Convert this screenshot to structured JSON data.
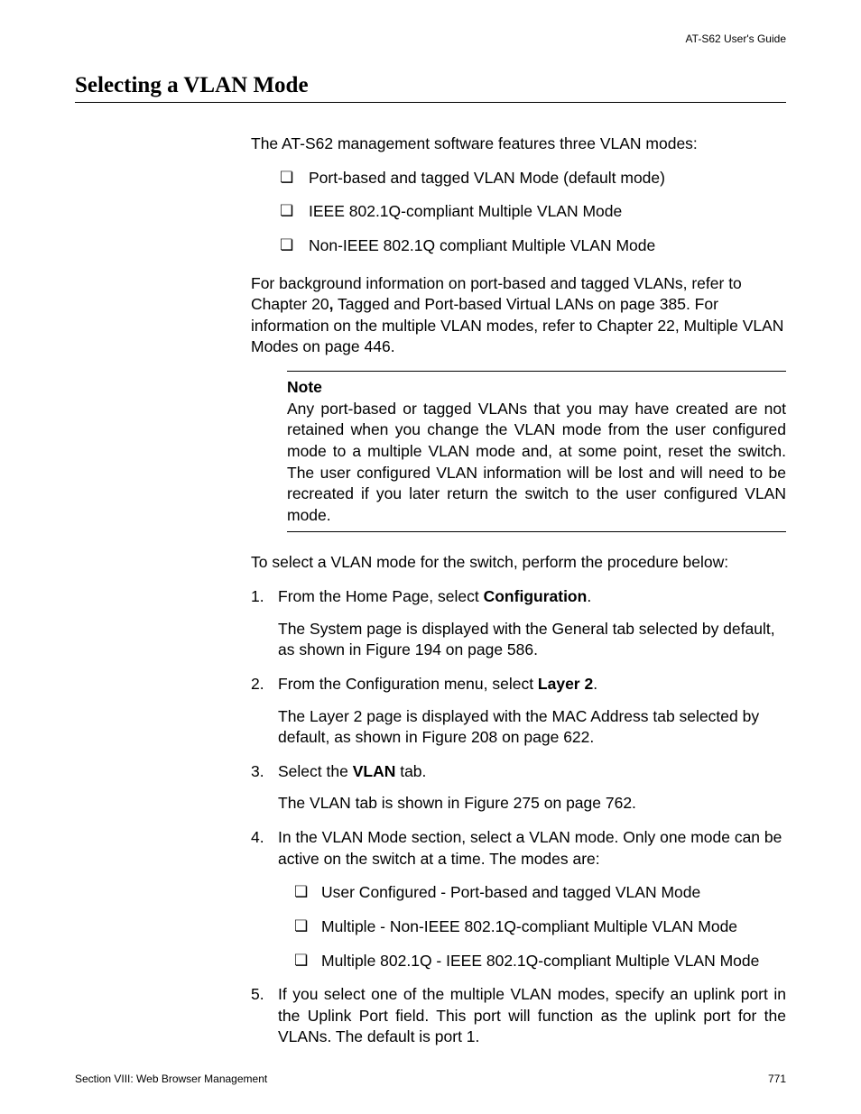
{
  "header": {
    "doc_title": "AT-S62 User's Guide"
  },
  "title": "Selecting a VLAN Mode",
  "intro": "The AT-S62 management software features three VLAN modes:",
  "modes_list": [
    "Port-based and tagged VLAN Mode (default mode)",
    "IEEE 802.1Q-compliant Multiple VLAN Mode",
    "Non-IEEE 802.1Q compliant Multiple VLAN Mode"
  ],
  "background_p1": "For background information on port-based and tagged VLANs, refer to Chapter 20",
  "background_comma_bold": ",",
  "background_p2": " Tagged and Port-based Virtual LANs on page 385. For information on the multiple VLAN modes, refer to Chapter 22, Multiple VLAN Modes on page 446.",
  "note": {
    "heading": "Note",
    "text": "Any port-based or tagged VLANs that you may have created are not retained when you change the VLAN mode from the user configured mode to a multiple VLAN mode and, at some point, reset the switch. The user configured VLAN information will be lost and will need to be recreated if you later return the switch to the user configured VLAN mode."
  },
  "procedure_intro": "To select a VLAN mode for the switch, perform the procedure below:",
  "steps": {
    "s1_pre": "From the Home Page, select ",
    "s1_bold": "Configuration",
    "s1_post": ".",
    "s1_sub": "The System page is displayed with the General tab selected by default, as shown in Figure 194 on page 586.",
    "s2_pre": "From the Configuration menu, select ",
    "s2_bold": "Layer 2",
    "s2_post": ".",
    "s2_sub": "The Layer 2 page is displayed with the MAC Address tab selected by default, as shown in Figure 208 on page 622.",
    "s3_pre": "Select the ",
    "s3_bold": "VLAN",
    "s3_post": " tab.",
    "s3_sub": "The VLAN tab is shown in Figure 275 on page 762.",
    "s4": "In the VLAN Mode section, select a VLAN mode. Only one mode can be active on the switch at a time. The modes are:",
    "s4_items": [
      "User Configured - Port-based and tagged VLAN Mode",
      "Multiple - Non-IEEE 802.1Q-compliant Multiple VLAN Mode",
      "Multiple 802.1Q - IEEE 802.1Q-compliant Multiple VLAN Mode"
    ],
    "s5": "If you select one of the multiple VLAN modes, specify an uplink port in the Uplink Port field. This port will function as the uplink port for the VLANs. The default is port 1."
  },
  "footer": {
    "section": "Section VIII: Web Browser Management",
    "page": "771"
  }
}
